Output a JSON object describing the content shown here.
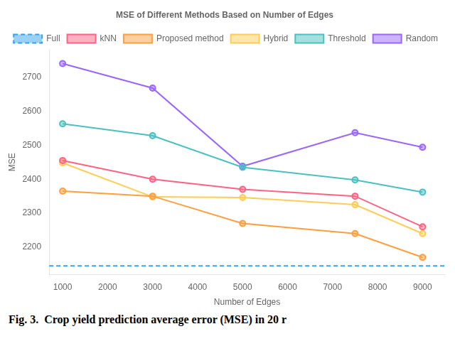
{
  "chart_data": {
    "type": "line",
    "title": "MSE of Different Methods Based on Number of Edges",
    "x_label": "Number of Edges",
    "y_label": "MSE",
    "caption": "Fig. 3.  Crop yield prediction average error (MSE) in 20 r",
    "x": [
      1000,
      3000,
      5000,
      7500,
      9000
    ],
    "series": [
      {
        "name": "Full",
        "type": "hline",
        "value": 2145,
        "line_style": "dashed"
      },
      {
        "name": "kNN",
        "values": [
          2455,
          2400,
          2370,
          2350,
          2260
        ],
        "marker": "circle",
        "line_style": "solid"
      },
      {
        "name": "Proposed method",
        "values": [
          2365,
          2350,
          2270,
          2240,
          2170
        ],
        "marker": "circle",
        "line_style": "solid"
      },
      {
        "name": "Hybrid",
        "values": [
          2448,
          2348,
          2346,
          2325,
          2240
        ],
        "marker": "circle",
        "line_style": "solid"
      },
      {
        "name": "Threshold",
        "values": [
          2563,
          2528,
          2435,
          2398,
          2362
        ],
        "marker": "circle",
        "line_style": "solid"
      },
      {
        "name": "Random",
        "values": [
          2740,
          2668,
          2438,
          2537,
          2494
        ],
        "marker": "circle",
        "line_style": "solid"
      }
    ],
    "xlim": [
      700,
      9500
    ],
    "ylim": [
      2120,
      2780
    ],
    "xticks": [
      1000,
      2000,
      3000,
      4000,
      5000,
      6000,
      7000,
      8000,
      9000
    ],
    "yticks": [
      2200,
      2300,
      2400,
      2500,
      2600,
      2700
    ],
    "grid": false,
    "legend": "upper right"
  }
}
